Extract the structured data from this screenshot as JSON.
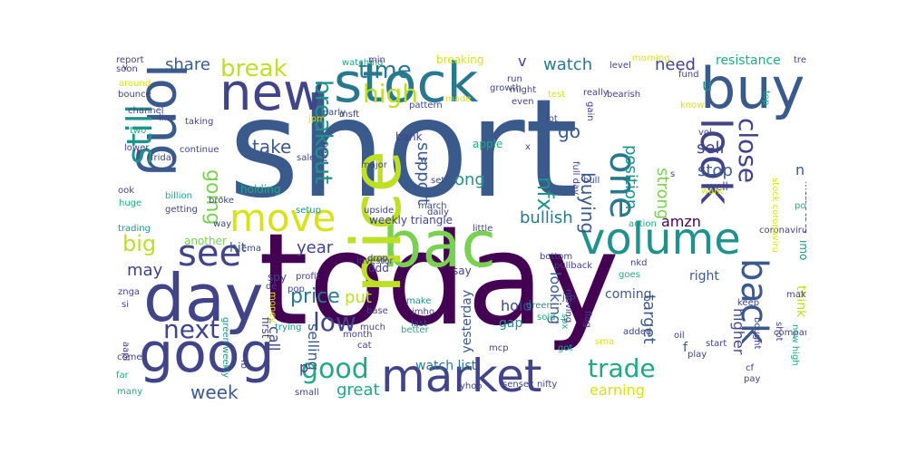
{
  "palette": {
    "dark_purple": "#440154",
    "indigo": "#414487",
    "slate_blue": "#3b5a8c",
    "teal_blue": "#2a788e",
    "teal": "#21918c",
    "green": "#22a884",
    "light_green": "#7ad151",
    "lime": "#bddf26",
    "yellow": "#d8e219"
  },
  "words": [
    {
      "text": "short",
      "color": "#3b5a8c"
    },
    {
      "text": "today",
      "color": "#440154"
    },
    {
      "text": "stock",
      "color": "#2a788e"
    },
    {
      "text": "goog",
      "color": "#414487"
    },
    {
      "text": "day",
      "color": "#414487"
    },
    {
      "text": "volume",
      "color": "#21918c"
    },
    {
      "text": "market",
      "color": "#414487"
    },
    {
      "text": "bac",
      "color": "#7ad151"
    },
    {
      "text": "new",
      "color": "#414487"
    },
    {
      "text": "buy",
      "color": "#3b5a8c"
    },
    {
      "text": "nice",
      "color": "#bddf26"
    },
    {
      "text": "long",
      "color": "#3b5a8c"
    },
    {
      "text": "look",
      "color": "#414487"
    },
    {
      "text": "back",
      "color": "#3b5a8c"
    },
    {
      "text": "move",
      "color": "#d8e219"
    },
    {
      "text": "one",
      "color": "#2a788e"
    },
    {
      "text": "still",
      "color": "#21918c"
    },
    {
      "text": "see",
      "color": "#414487"
    },
    {
      "text": "breakout",
      "color": "#21918c"
    },
    {
      "text": "close",
      "color": "#414487"
    },
    {
      "text": "good",
      "color": "#22a884"
    },
    {
      "text": "high",
      "color": "#bddf26"
    },
    {
      "text": "time",
      "color": "#2a788e"
    },
    {
      "text": "break",
      "color": "#bddf26"
    },
    {
      "text": "trade",
      "color": "#22a884"
    },
    {
      "text": "next",
      "color": "#414487"
    },
    {
      "text": "low",
      "color": "#414487"
    },
    {
      "text": "going",
      "color": "#7ad151"
    },
    {
      "text": "big",
      "color": "#bddf26"
    },
    {
      "text": "week",
      "color": "#3b5a8c"
    },
    {
      "text": "price",
      "color": "#2a788e"
    },
    {
      "text": "watch",
      "color": "#2a788e"
    },
    {
      "text": "need",
      "color": "#414487"
    },
    {
      "text": "share",
      "color": "#3b5a8c"
    },
    {
      "text": "nfx",
      "color": "#21918c"
    },
    {
      "text": "go",
      "color": "#3b5a8c"
    },
    {
      "text": "take",
      "color": "#3b5a8c"
    },
    {
      "text": "sell",
      "color": "#414487"
    },
    {
      "text": "stop",
      "color": "#3b5a8c"
    },
    {
      "text": "buying",
      "color": "#3b5a8c"
    },
    {
      "text": "position",
      "color": "#21918c"
    },
    {
      "text": "strong",
      "color": "#7ad151"
    },
    {
      "text": "support",
      "color": "#3b5a8c"
    },
    {
      "text": "bullish",
      "color": "#2a788e"
    },
    {
      "text": "target",
      "color": "#3b5a8c"
    },
    {
      "text": "think",
      "color": "#bddf26"
    },
    {
      "text": "higher",
      "color": "#414487"
    },
    {
      "text": "year",
      "color": "#414487"
    },
    {
      "text": "call",
      "color": "#414487"
    },
    {
      "text": "put",
      "color": "#bddf26"
    },
    {
      "text": "may",
      "color": "#414487"
    },
    {
      "text": "great",
      "color": "#22a884"
    },
    {
      "text": "earning",
      "color": "#d8e219"
    },
    {
      "text": "hold",
      "color": "#414487"
    },
    {
      "text": "watch list",
      "color": "#2a788e"
    },
    {
      "text": "looking",
      "color": "#3b5a8c"
    },
    {
      "text": "amzn",
      "color": "#440154"
    },
    {
      "text": "selling",
      "color": "#3b5a8c"
    },
    {
      "text": "ong",
      "color": "#21918c"
    },
    {
      "text": "coming",
      "color": "#3b5a8c"
    },
    {
      "text": "yesterday",
      "color": "#3b5a8c"
    },
    {
      "text": "gap",
      "color": "#21918c"
    },
    {
      "text": "right",
      "color": "#3b5a8c"
    },
    {
      "text": "v",
      "color": "#414487"
    },
    {
      "text": "u",
      "color": "#21918c"
    },
    {
      "text": "n",
      "color": "#3b5a8c"
    },
    {
      "text": "p",
      "color": "#414487"
    },
    {
      "text": "f",
      "color": "#3b5a8c"
    },
    {
      "text": "resistance",
      "color": "#22a884"
    },
    {
      "text": "weekly triangle",
      "color": "#414487"
    },
    {
      "text": "bank",
      "color": "#414487"
    },
    {
      "text": "apple",
      "color": "#22a884"
    },
    {
      "text": "hit",
      "color": "#3b5a8c"
    },
    {
      "text": "holding",
      "color": "#22a884"
    },
    {
      "text": "well",
      "color": "#414487"
    },
    {
      "text": "tomorrow",
      "color": "#414487"
    },
    {
      "text": "vol",
      "color": "#414487"
    },
    {
      "text": "breaking",
      "color": "#d8e219"
    },
    {
      "text": "another",
      "color": "#7ad151"
    },
    {
      "text": "spy",
      "color": "#414487"
    },
    {
      "text": "ddd",
      "color": "#414487"
    },
    {
      "text": "say",
      "color": "#414487"
    },
    {
      "text": "first",
      "color": "#414487"
    },
    {
      "text": "imo",
      "color": "#21918c"
    },
    {
      "text": "sma",
      "color": "#d8e219"
    },
    {
      "text": "make",
      "color": "#21918c"
    },
    {
      "text": "imho",
      "color": "#414487"
    },
    {
      "text": "last",
      "color": "#414487"
    },
    {
      "text": "much",
      "color": "#414487"
    },
    {
      "text": "month",
      "color": "#414487"
    },
    {
      "text": "cat",
      "color": "#414487"
    },
    {
      "text": "mcp",
      "color": "#414487"
    },
    {
      "text": "better",
      "color": "#22a884"
    },
    {
      "text": "added",
      "color": "#414487"
    },
    {
      "text": "oil",
      "color": "#414487"
    },
    {
      "text": "start",
      "color": "#414487"
    },
    {
      "text": "play",
      "color": "#414487"
    },
    {
      "text": "company",
      "color": "#414487"
    },
    {
      "text": "bought",
      "color": "#414487"
    },
    {
      "text": "shot",
      "color": "#414487"
    },
    {
      "text": "keep",
      "color": "#414487"
    },
    {
      "text": "making",
      "color": "#414487"
    },
    {
      "text": "new high",
      "color": "#22a884"
    },
    {
      "text": "cf",
      "color": "#414487"
    },
    {
      "text": "pay",
      "color": "#414487"
    },
    {
      "text": "come",
      "color": "#414487"
    },
    {
      "text": "aapl",
      "color": "#414487"
    },
    {
      "text": "many",
      "color": "#22a884"
    },
    {
      "text": "far",
      "color": "#22a884"
    },
    {
      "text": "fb",
      "color": "#414487"
    },
    {
      "text": "small",
      "color": "#414487"
    },
    {
      "text": "yhoo",
      "color": "#414487"
    },
    {
      "text": "sensex nifty",
      "color": "#414487"
    },
    {
      "text": "base",
      "color": "#414487"
    },
    {
      "text": "green",
      "color": "#21918c"
    },
    {
      "text": "sold",
      "color": "#22a884"
    },
    {
      "text": "spx",
      "color": "#22a884"
    },
    {
      "text": "flag",
      "color": "#414487"
    },
    {
      "text": "got",
      "color": "#22a884"
    },
    {
      "text": "investor",
      "color": "#414487"
    },
    {
      "text": "profit",
      "color": "#414487"
    },
    {
      "text": "de",
      "color": "#414487"
    },
    {
      "text": "pop",
      "color": "#414487"
    },
    {
      "text": "money",
      "color": "#d8e219"
    },
    {
      "text": "trying",
      "color": "#21918c"
    },
    {
      "text": "green weekly",
      "color": "#21918c"
    },
    {
      "text": "ema",
      "color": "#414487"
    },
    {
      "text": "znga",
      "color": "#414487"
    },
    {
      "text": "si",
      "color": "#414487"
    },
    {
      "text": "trading",
      "color": "#21918c"
    },
    {
      "text": "huge",
      "color": "#22a884"
    },
    {
      "text": "way",
      "color": "#414487"
    },
    {
      "text": "ook",
      "color": "#414487"
    },
    {
      "text": "billion",
      "color": "#22a884"
    },
    {
      "text": "getting",
      "color": "#414487"
    },
    {
      "text": "broke",
      "color": "#414487"
    },
    {
      "text": "setup",
      "color": "#21918c"
    },
    {
      "text": "upside",
      "color": "#414487"
    },
    {
      "text": "march",
      "color": "#414487"
    },
    {
      "text": "daily",
      "color": "#414487"
    },
    {
      "text": "little",
      "color": "#414487"
    },
    {
      "text": "drop",
      "color": "#414487"
    },
    {
      "text": "bottom",
      "color": "#414487"
    },
    {
      "text": "pullback",
      "color": "#414487"
    },
    {
      "text": "jcp",
      "color": "#414487"
    },
    {
      "text": "moving",
      "color": "#414487"
    },
    {
      "text": "goes",
      "color": "#22a884"
    },
    {
      "text": "nkd",
      "color": "#414487"
    },
    {
      "text": "action",
      "color": "#22a884"
    },
    {
      "text": "coronaviru",
      "color": "#414487"
    },
    {
      "text": "stock coronaviru",
      "color": "#d8e219"
    },
    {
      "text": "taking",
      "color": "#414487"
    },
    {
      "text": "two",
      "color": "#22a884"
    },
    {
      "text": "lower",
      "color": "#414487"
    },
    {
      "text": "continue",
      "color": "#414487"
    },
    {
      "text": "friday",
      "color": "#414487"
    },
    {
      "text": "line",
      "color": "#414487"
    },
    {
      "text": "channel",
      "color": "#414487"
    },
    {
      "text": "bounce",
      "color": "#414487"
    },
    {
      "text": "around",
      "color": "#d8e219"
    },
    {
      "text": "soon",
      "color": "#414487"
    },
    {
      "text": "report",
      "color": "#414487"
    },
    {
      "text": "watching",
      "color": "#22a884"
    },
    {
      "text": "jpm",
      "color": "#d8e219"
    },
    {
      "text": "msft",
      "color": "#414487"
    },
    {
      "text": "min",
      "color": "#414487"
    },
    {
      "text": "pattern",
      "color": "#414487"
    },
    {
      "text": "made",
      "color": "#d8e219"
    },
    {
      "text": "growth",
      "color": "#414487"
    },
    {
      "text": "run",
      "color": "#414487"
    },
    {
      "text": "might",
      "color": "#414487"
    },
    {
      "text": "even",
      "color": "#414487"
    },
    {
      "text": "test",
      "color": "#d8e219"
    },
    {
      "text": "lot",
      "color": "#414487"
    },
    {
      "text": "really",
      "color": "#414487"
    },
    {
      "text": "bearish",
      "color": "#414487"
    },
    {
      "text": "morning",
      "color": "#d8e219"
    },
    {
      "text": "level",
      "color": "#414487"
    },
    {
      "text": "fund",
      "color": "#414487"
    },
    {
      "text": "know",
      "color": "#d8e219"
    },
    {
      "text": "top",
      "color": "#22a884"
    },
    {
      "text": "trend",
      "color": "#414487"
    },
    {
      "text": "gain",
      "color": "#414487"
    },
    {
      "text": "early",
      "color": "#414487"
    },
    {
      "text": "full day",
      "color": "#414487"
    },
    {
      "text": "bull",
      "color": "#414487"
    },
    {
      "text": "set",
      "color": "#414487"
    },
    {
      "text": "want",
      "color": "#d8e219"
    },
    {
      "text": "possible",
      "color": "#22a884"
    },
    {
      "text": "sale",
      "color": "#414487"
    },
    {
      "text": "near",
      "color": "#414487"
    },
    {
      "text": "major",
      "color": "#414487"
    },
    {
      "text": "w",
      "color": "#414487"
    },
    {
      "text": "x",
      "color": "#414487"
    },
    {
      "text": "s",
      "color": "#414487"
    },
    {
      "text": "v",
      "color": "#414487"
    }
  ]
}
